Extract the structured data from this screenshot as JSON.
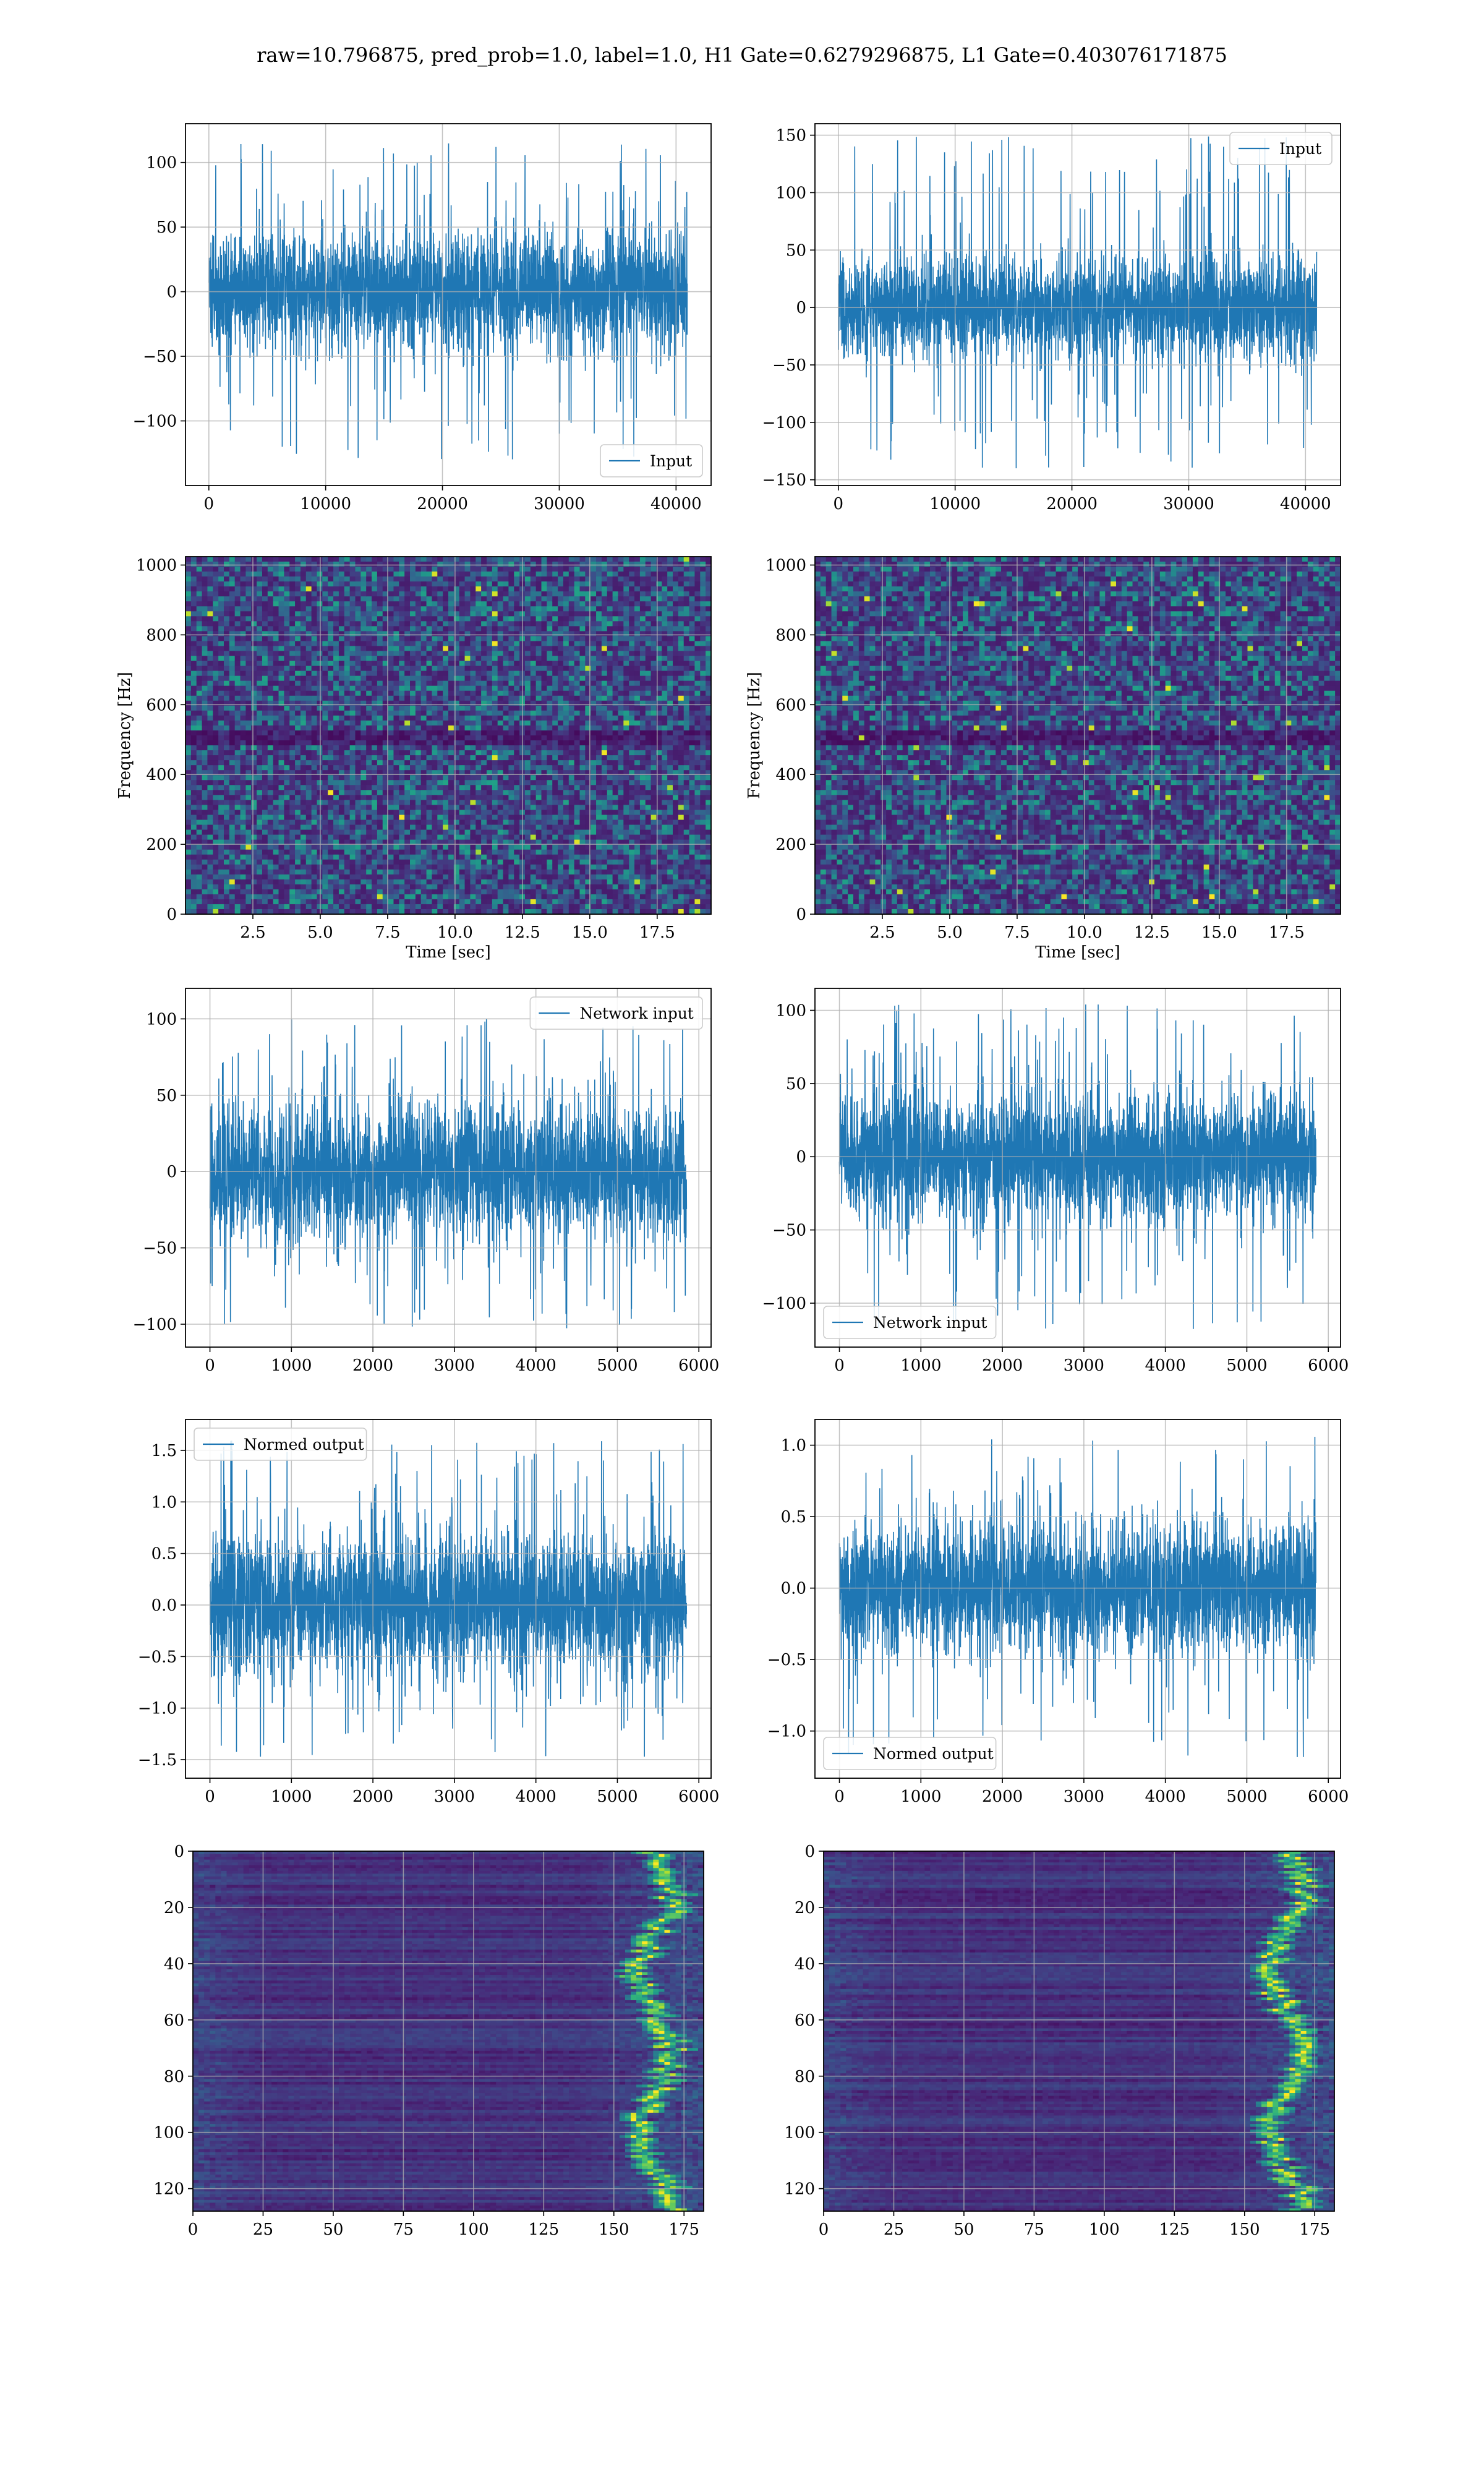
{
  "figure": {
    "title": "raw=10.796875, pred_prob=1.0, label=1.0, H1 Gate=0.6279296875, L1 Gate=0.403076171875"
  },
  "colors": {
    "line": "#1f77b4",
    "viridis_low": "#440154",
    "viridis_mid": "#21918c",
    "viridis_high": "#fde725"
  },
  "chart_data": [
    {
      "id": "input-h1",
      "type": "line",
      "series": [
        {
          "name": "Input",
          "length": 40960,
          "amplitude_std": 22,
          "peak_range": [
            -130,
            115
          ]
        }
      ],
      "xlim": [
        -2000,
        43000
      ],
      "ylim": [
        -150,
        130
      ],
      "xticks": [
        0,
        10000,
        20000,
        30000,
        40000
      ],
      "yticks": [
        -100,
        -50,
        0,
        50,
        100
      ],
      "xlabel": "",
      "ylabel": "",
      "legend": "lower right",
      "grid": true
    },
    {
      "id": "input-l1",
      "type": "line",
      "series": [
        {
          "name": "Input",
          "length": 40960,
          "amplitude_std": 22,
          "peak_range": [
            -140,
            150
          ]
        }
      ],
      "xlim": [
        -2000,
        43000
      ],
      "ylim": [
        -155,
        160
      ],
      "xticks": [
        0,
        10000,
        20000,
        30000,
        40000
      ],
      "yticks": [
        -150,
        -100,
        -50,
        0,
        50,
        100,
        150
      ],
      "xlabel": "",
      "ylabel": "",
      "legend": "upper right",
      "grid": true
    },
    {
      "id": "spectrogram-h1",
      "type": "heatmap",
      "colormap": "viridis",
      "xlim": [
        0,
        19.5
      ],
      "ylim": [
        0,
        1024
      ],
      "xticks": [
        2.5,
        5.0,
        7.5,
        10.0,
        12.5,
        15.0,
        17.5
      ],
      "yticks": [
        0,
        200,
        400,
        600,
        800,
        1000
      ],
      "xlabel": "Time [sec]",
      "ylabel": "Frequency [Hz]",
      "grid": true
    },
    {
      "id": "spectrogram-l1",
      "type": "heatmap",
      "colormap": "viridis",
      "xlim": [
        0,
        19.5
      ],
      "ylim": [
        0,
        1024
      ],
      "xticks": [
        2.5,
        5.0,
        7.5,
        10.0,
        12.5,
        15.0,
        17.5
      ],
      "yticks": [
        0,
        200,
        400,
        600,
        800,
        1000
      ],
      "xlabel": "Time [sec]",
      "ylabel": "Frequency [Hz]",
      "grid": true
    },
    {
      "id": "network-input-h1",
      "type": "line",
      "series": [
        {
          "name": "Network input",
          "length": 5850,
          "amplitude_std": 22,
          "peak_range": [
            -103,
            100
          ]
        }
      ],
      "xlim": [
        -300,
        6150
      ],
      "ylim": [
        -115,
        120
      ],
      "xticks": [
        0,
        1000,
        2000,
        3000,
        4000,
        5000,
        6000
      ],
      "yticks": [
        -100,
        -50,
        0,
        50,
        100
      ],
      "xlabel": "",
      "ylabel": "",
      "legend": "upper right",
      "grid": true
    },
    {
      "id": "network-input-l1",
      "type": "line",
      "series": [
        {
          "name": "Network input",
          "length": 5850,
          "amplitude_std": 21,
          "peak_range": [
            -118,
            105
          ]
        }
      ],
      "xlim": [
        -300,
        6150
      ],
      "ylim": [
        -130,
        115
      ],
      "xticks": [
        0,
        1000,
        2000,
        3000,
        4000,
        5000,
        6000
      ],
      "yticks": [
        -100,
        -50,
        0,
        50,
        100
      ],
      "xlabel": "",
      "ylabel": "",
      "legend": "lower left",
      "grid": true
    },
    {
      "id": "normed-output-h1",
      "type": "line",
      "series": [
        {
          "name": "Normed output",
          "length": 5850,
          "amplitude_std": 0.33,
          "peak_range": [
            -1.5,
            1.6
          ]
        }
      ],
      "xlim": [
        -300,
        6150
      ],
      "ylim": [
        -1.68,
        1.8
      ],
      "xticks": [
        0,
        1000,
        2000,
        3000,
        4000,
        5000,
        6000
      ],
      "yticks": [
        -1.5,
        -1.0,
        -0.5,
        0.0,
        0.5,
        1.0,
        1.5
      ],
      "xlabel": "",
      "ylabel": "",
      "legend": "upper left",
      "grid": true
    },
    {
      "id": "normed-output-l1",
      "type": "line",
      "series": [
        {
          "name": "Normed output",
          "length": 5850,
          "amplitude_std": 0.23,
          "peak_range": [
            -1.22,
            1.08
          ]
        }
      ],
      "xlim": [
        -300,
        6150
      ],
      "ylim": [
        -1.33,
        1.18
      ],
      "xticks": [
        0,
        1000,
        2000,
        3000,
        4000,
        5000,
        6000
      ],
      "yticks": [
        -1.0,
        -0.5,
        0.0,
        0.5,
        1.0
      ],
      "xlabel": "",
      "ylabel": "",
      "legend": "lower left",
      "grid": true
    },
    {
      "id": "feature-map-h1",
      "type": "heatmap",
      "colormap": "viridis",
      "rows": 128,
      "cols": 182,
      "xlim": [
        0,
        182
      ],
      "ylim": [
        128,
        0
      ],
      "xticks": [
        0,
        25,
        50,
        75,
        100,
        125,
        150,
        175
      ],
      "yticks": [
        0,
        20,
        40,
        60,
        80,
        100,
        120
      ],
      "xlabel": "",
      "ylabel": "",
      "grid": true
    },
    {
      "id": "feature-map-l1",
      "type": "heatmap",
      "colormap": "viridis",
      "rows": 128,
      "cols": 182,
      "xlim": [
        0,
        182
      ],
      "ylim": [
        128,
        0
      ],
      "xticks": [
        0,
        25,
        50,
        75,
        100,
        125,
        150,
        175
      ],
      "yticks": [
        0,
        20,
        40,
        60,
        80,
        100,
        120
      ],
      "xlabel": "",
      "ylabel": "",
      "grid": true
    }
  ]
}
